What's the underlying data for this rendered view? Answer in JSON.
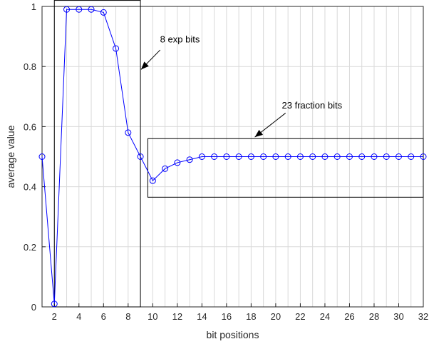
{
  "chart_data": {
    "type": "line",
    "xlabel": "bit positions",
    "ylabel": "average value",
    "xlim": [
      1,
      32
    ],
    "ylim": [
      0,
      1
    ],
    "xticks": [
      2,
      4,
      6,
      8,
      10,
      12,
      14,
      16,
      18,
      20,
      22,
      24,
      26,
      28,
      30,
      32
    ],
    "yticks": [
      0,
      0.2,
      0.4,
      0.6,
      0.8,
      1
    ],
    "ytick_labels": [
      "0",
      "0.2",
      "0.4",
      "0.6",
      "0.8",
      "1"
    ],
    "grid": true,
    "grid_x_step": 1,
    "series": [
      {
        "color": "#0000ff",
        "marker": "circle",
        "x": [
          1,
          2,
          3,
          4,
          5,
          6,
          7,
          8,
          9,
          10,
          11,
          12,
          13,
          14,
          15,
          16,
          17,
          18,
          19,
          20,
          21,
          22,
          23,
          24,
          25,
          26,
          27,
          28,
          29,
          30,
          31,
          32
        ],
        "values": [
          0.5,
          0.01,
          0.99,
          0.99,
          0.99,
          0.98,
          0.86,
          0.58,
          0.5,
          0.42,
          0.46,
          0.48,
          0.49,
          0.5,
          0.5,
          0.5,
          0.5,
          0.5,
          0.5,
          0.5,
          0.5,
          0.5,
          0.5,
          0.5,
          0.5,
          0.5,
          0.5,
          0.5,
          0.5,
          0.5,
          0.5,
          0.5
        ]
      }
    ],
    "annotations": [
      {
        "text": "8 exp bits",
        "box": {
          "x": [
            2,
            9
          ],
          "y": [
            0,
            1.02
          ]
        },
        "text_at": [
          10.6,
          0.88
        ],
        "arrow_from": [
          10.6,
          0.855
        ],
        "arrow_to": [
          9.05,
          0.79
        ]
      },
      {
        "text": "23 fraction bits",
        "box": {
          "x": [
            9.6,
            32
          ],
          "y": [
            0.365,
            0.56
          ]
        },
        "text_at": [
          20.5,
          0.66
        ],
        "arrow_from": [
          20.8,
          0.645
        ],
        "arrow_to": [
          18.3,
          0.565
        ]
      }
    ]
  }
}
